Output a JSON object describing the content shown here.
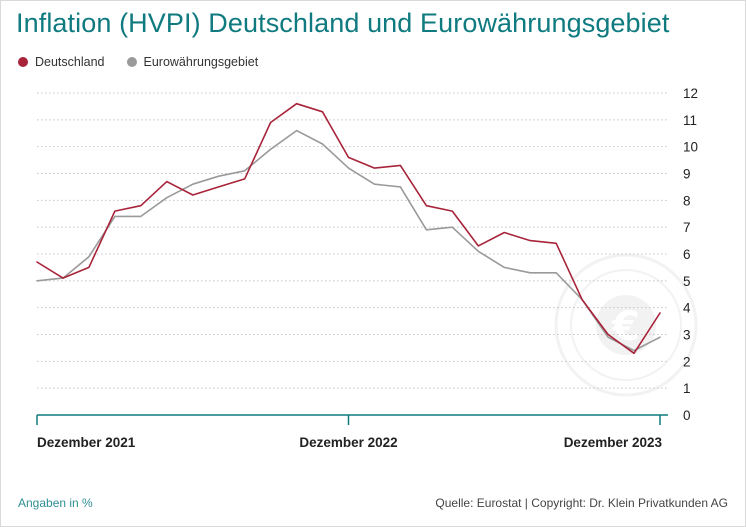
{
  "title": "Inflation (HVPI) Deutschland und Eurowährungsgebiet",
  "note": "Angaben in %",
  "source": "Quelle: Eurostat | Copyright: Dr. Klein Privatkunden AG",
  "colors": {
    "germany": "#a8243a",
    "euro": "#9a9a9a",
    "accent": "#0f7a7f"
  },
  "chart_data": {
    "type": "line",
    "x": [
      "2021-12",
      "2022-01",
      "2022-02",
      "2022-03",
      "2022-04",
      "2022-05",
      "2022-06",
      "2022-07",
      "2022-08",
      "2022-09",
      "2022-10",
      "2022-11",
      "2022-12",
      "2023-01",
      "2023-02",
      "2023-03",
      "2023-04",
      "2023-05",
      "2023-06",
      "2023-07",
      "2023-08",
      "2023-09",
      "2023-10",
      "2023-11",
      "2023-12"
    ],
    "x_tick_labels": [
      "Dezember 2021",
      "Dezember 2022",
      "Dezember 2023"
    ],
    "x_tick_dates": [
      "2021-12",
      "2022-12",
      "2023-12"
    ],
    "y_ticks": [
      0,
      1,
      2,
      3,
      4,
      5,
      6,
      7,
      8,
      9,
      10,
      11,
      12
    ],
    "ylim": [
      0,
      12
    ],
    "y_axis_side": "right",
    "grid": "horizontal dotted",
    "legend_position": "top-left",
    "series": [
      {
        "name": "Deutschland",
        "color": "#a8243a",
        "values": [
          5.7,
          5.1,
          5.5,
          7.6,
          7.8,
          8.7,
          8.2,
          8.5,
          8.8,
          10.9,
          11.6,
          11.3,
          9.6,
          9.2,
          9.3,
          7.8,
          7.6,
          6.3,
          6.8,
          6.5,
          6.4,
          4.3,
          3.0,
          2.3,
          3.8
        ]
      },
      {
        "name": "Eurowährungsgebiet",
        "color": "#9a9a9a",
        "values": [
          5.0,
          5.1,
          5.9,
          7.4,
          7.4,
          8.1,
          8.6,
          8.9,
          9.1,
          9.9,
          10.6,
          10.1,
          9.2,
          8.6,
          8.5,
          6.9,
          7.0,
          6.1,
          5.5,
          5.3,
          5.3,
          4.3,
          2.9,
          2.4,
          2.9
        ]
      }
    ]
  }
}
